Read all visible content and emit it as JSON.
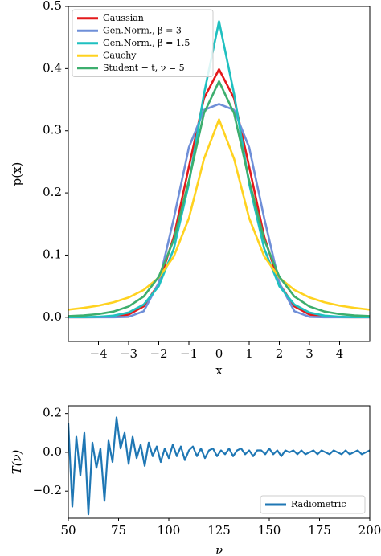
{
  "chart_data": [
    {
      "type": "line",
      "x_label": "x",
      "y_label": "p(x)",
      "x": [
        -5,
        -4.5,
        -4,
        -3.5,
        -3,
        -2.5,
        -2,
        -1.5,
        -1,
        -0.5,
        0,
        0.5,
        1,
        1.5,
        2,
        2.5,
        3,
        3.5,
        4,
        4.5,
        5
      ],
      "xlim": [
        -5,
        5
      ],
      "ylim": [
        -0.039,
        0.5
      ],
      "xticks": [
        {
          "value": -4,
          "label": "−4"
        },
        {
          "value": -3,
          "label": "−3"
        },
        {
          "value": -2,
          "label": "−2"
        },
        {
          "value": -1,
          "label": "−1"
        },
        0,
        1,
        2,
        3,
        4
      ],
      "yticks": [
        {
          "value": 0,
          "label": "0.0"
        },
        0.1,
        0.2,
        0.3,
        0.4,
        0.5
      ],
      "legend": "upper left",
      "series": [
        {
          "name": "Gaussian",
          "color": "#e41a1c",
          "values": [
            0,
            0,
            0.0001,
            0.0009,
            0.0044,
            0.0175,
            0.054,
            0.1295,
            0.242,
            0.3521,
            0.3989,
            0.3521,
            0.242,
            0.1295,
            0.054,
            0.0175,
            0.0044,
            0.0009,
            0.0001,
            0,
            0
          ]
        },
        {
          "name": "Gen.Norm., β = 3",
          "color": "#6f8fd8",
          "values": [
            0,
            0,
            0,
            0,
            0.0007,
            0.0097,
            0.0554,
            0.159,
            0.2731,
            0.3334,
            0.343,
            0.3334,
            0.2731,
            0.159,
            0.0554,
            0.0097,
            0.0007,
            0,
            0,
            0,
            0
          ]
        },
        {
          "name": "Gen.Norm., β = 1.5",
          "color": "#1fc0c0",
          "values": [
            0.0001,
            0.0002,
            0.0008,
            0.0026,
            0.0076,
            0.0204,
            0.05,
            0.1101,
            0.2146,
            0.3591,
            0.476,
            0.3591,
            0.2146,
            0.1101,
            0.05,
            0.0204,
            0.0076,
            0.0026,
            0.0008,
            0.0002,
            0.0001
          ]
        },
        {
          "name": "Cauchy",
          "color": "#ffd21f",
          "values": [
            0.0122,
            0.015,
            0.0187,
            0.024,
            0.0318,
            0.0439,
            0.0637,
            0.0979,
            0.1592,
            0.2546,
            0.3183,
            0.2546,
            0.1592,
            0.0979,
            0.0637,
            0.0439,
            0.0318,
            0.024,
            0.0187,
            0.015,
            0.0122
          ]
        },
        {
          "name": "Student − t, ν = 5",
          "color": "#3dae6e",
          "values": [
            0.0018,
            0.0029,
            0.0051,
            0.0092,
            0.0173,
            0.0333,
            0.0651,
            0.1245,
            0.2197,
            0.3279,
            0.3796,
            0.3279,
            0.2197,
            0.1245,
            0.0651,
            0.0333,
            0.0173,
            0.0092,
            0.0051,
            0.0029,
            0.0018
          ]
        }
      ]
    },
    {
      "type": "line",
      "x_label": "ν",
      "y_label": "T(ν)",
      "x": [
        50,
        52,
        54,
        56,
        58,
        60,
        62,
        64,
        66,
        68,
        70,
        72,
        74,
        76,
        78,
        80,
        82,
        84,
        86,
        88,
        90,
        92,
        94,
        96,
        98,
        100,
        102,
        104,
        106,
        108,
        110,
        112,
        114,
        116,
        118,
        120,
        122,
        124,
        126,
        128,
        130,
        132,
        134,
        136,
        138,
        140,
        142,
        144,
        146,
        148,
        150,
        152,
        154,
        156,
        158,
        160,
        162,
        164,
        166,
        168,
        170,
        172,
        174,
        176,
        178,
        180,
        182,
        184,
        186,
        188,
        190,
        192,
        194,
        196,
        198,
        200
      ],
      "xlim": [
        50,
        200
      ],
      "ylim": [
        -0.34,
        0.24
      ],
      "xticks": [
        50,
        75,
        100,
        125,
        150,
        175,
        200
      ],
      "yticks": [
        {
          "value": -0.2,
          "label": "−0.2"
        },
        {
          "value": 0,
          "label": "0.0"
        },
        0.2
      ],
      "legend": "lower right",
      "series": [
        {
          "name": "Radiometric",
          "color": "#1f77b4",
          "values": [
            0.15,
            -0.28,
            0.08,
            -0.12,
            0.1,
            -0.32,
            0.05,
            -0.08,
            0.02,
            -0.25,
            0.06,
            -0.05,
            0.18,
            0.02,
            0.1,
            -0.06,
            0.08,
            -0.03,
            0.04,
            -0.07,
            0.05,
            -0.02,
            0.03,
            -0.05,
            0.02,
            -0.03,
            0.04,
            -0.02,
            0.03,
            -0.04,
            0.01,
            0.03,
            -0.02,
            0.02,
            -0.03,
            0.01,
            0.02,
            -0.02,
            0.01,
            -0.01,
            0.02,
            -0.02,
            0.01,
            0.02,
            -0.01,
            0.01,
            -0.02,
            0.01,
            0.01,
            -0.01,
            0.02,
            -0.01,
            0.01,
            -0.02,
            0.01,
            0,
            0.01,
            -0.01,
            0.01,
            -0.01,
            0,
            0.01,
            -0.01,
            0.01,
            0,
            -0.01,
            0.01,
            0,
            -0.01,
            0.01,
            -0.01,
            0,
            0.01,
            -0.01,
            0,
            0.01
          ]
        }
      ]
    }
  ]
}
